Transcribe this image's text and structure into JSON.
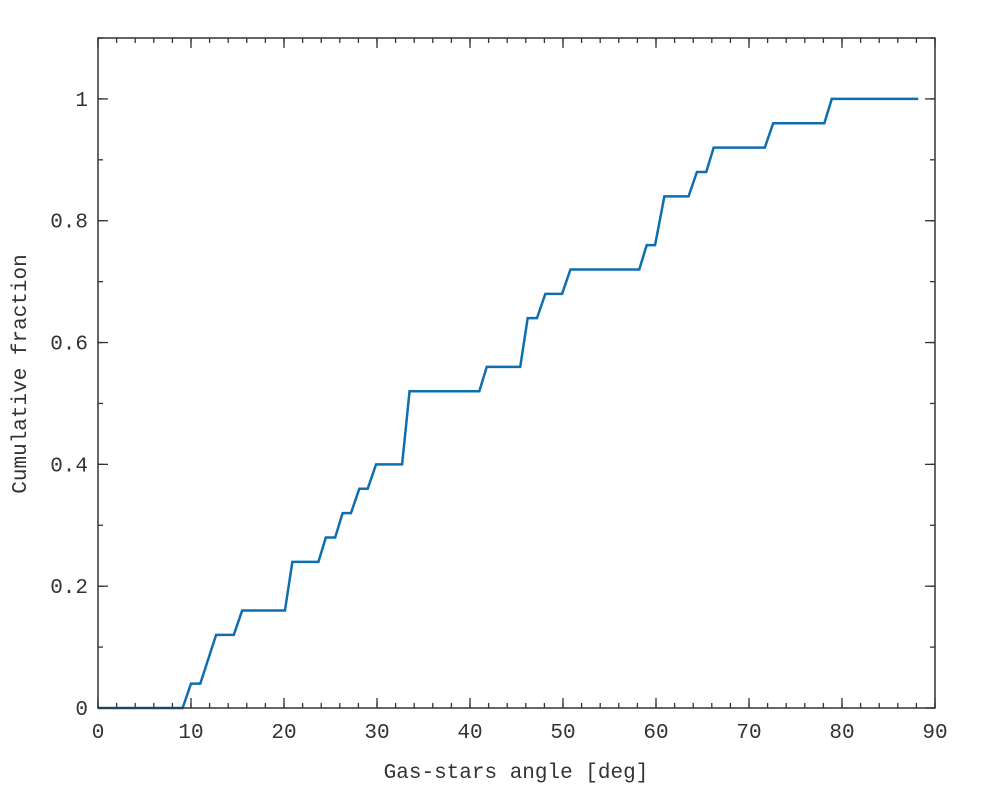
{
  "chart_data": {
    "type": "line",
    "xlabel": "Gas-stars angle [deg]",
    "ylabel": "Cumulative fraction",
    "x": [
      0,
      9.1,
      10,
      11,
      12.7,
      14.6,
      15.5,
      20.1,
      20.9,
      23.7,
      24.5,
      25.5,
      26.3,
      27.2,
      28.1,
      29,
      29.9,
      32.7,
      33.5,
      41,
      41.8,
      45.4,
      46.2,
      47.2,
      48.1,
      49.9,
      50.8,
      58.2,
      59,
      59.9,
      60.9,
      63.5,
      64.4,
      65.4,
      66.2,
      71.7,
      72.6,
      78.1,
      78.9,
      88.2
    ],
    "series": [
      {
        "color": "#0e6eb0",
        "values": [
          0,
          0,
          0.04,
          0.04,
          0.12,
          0.12,
          0.16,
          0.16,
          0.24,
          0.24,
          0.28,
          0.28,
          0.32,
          0.32,
          0.36,
          0.36,
          0.4,
          0.4,
          0.52,
          0.52,
          0.56,
          0.56,
          0.64,
          0.64,
          0.68,
          0.68,
          0.72,
          0.72,
          0.76,
          0.76,
          0.84,
          0.84,
          0.88,
          0.88,
          0.92,
          0.92,
          0.96,
          0.96,
          1,
          1
        ]
      }
    ],
    "xlim": [
      0,
      90
    ],
    "xticks": [
      0,
      10,
      20,
      30,
      40,
      50,
      60,
      70,
      80,
      90
    ],
    "ylim": [
      0,
      1.1
    ],
    "yticks": [
      0,
      0.2,
      0.4,
      0.6,
      0.8,
      1
    ],
    "grid": false
  }
}
